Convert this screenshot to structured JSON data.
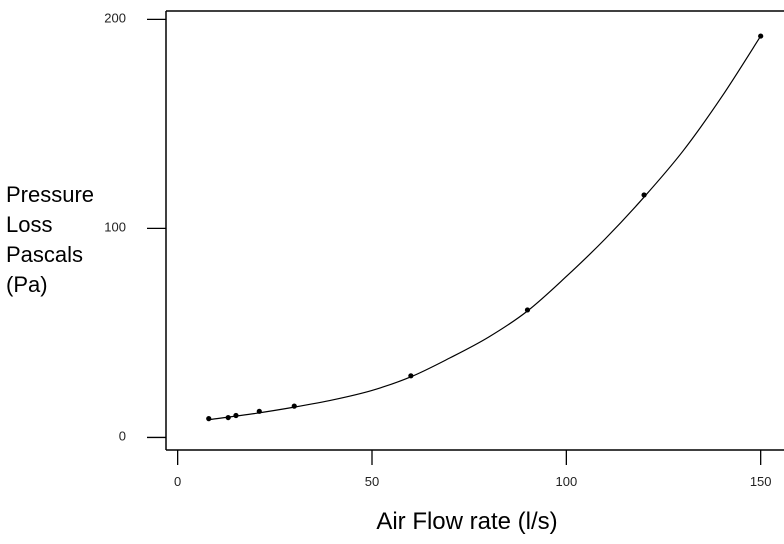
{
  "chart_data": {
    "type": "scatter",
    "title": "",
    "xlabel": "Air Flow rate (l/s)",
    "ylabel_lines": [
      "Pressure",
      "Loss",
      "Pascals",
      "(Pa)"
    ],
    "xlim": [
      -3,
      156
    ],
    "ylim": [
      -6,
      204
    ],
    "x_ticks": [
      0,
      50,
      100,
      150
    ],
    "y_ticks": [
      0,
      100,
      200
    ],
    "grid": false,
    "legend": "none",
    "series": [
      {
        "points": [
          {
            "x": 8,
            "y": 9
          },
          {
            "x": 13,
            "y": 9.5
          },
          {
            "x": 15,
            "y": 10.5
          },
          {
            "x": 21,
            "y": 12.5
          },
          {
            "x": 30,
            "y": 15
          },
          {
            "x": 60,
            "y": 29.5
          },
          {
            "x": 90,
            "y": 61
          },
          {
            "x": 120,
            "y": 116
          },
          {
            "x": 150,
            "y": 192
          }
        ],
        "trend_curve": [
          {
            "x": 8,
            "y": 8.5
          },
          {
            "x": 20,
            "y": 11.5
          },
          {
            "x": 30,
            "y": 14.5
          },
          {
            "x": 40,
            "y": 18
          },
          {
            "x": 50,
            "y": 22.5
          },
          {
            "x": 60,
            "y": 29
          },
          {
            "x": 70,
            "y": 38
          },
          {
            "x": 80,
            "y": 48
          },
          {
            "x": 90,
            "y": 60.5
          },
          {
            "x": 100,
            "y": 77
          },
          {
            "x": 110,
            "y": 95
          },
          {
            "x": 120,
            "y": 115
          },
          {
            "x": 130,
            "y": 137
          },
          {
            "x": 140,
            "y": 163
          },
          {
            "x": 150,
            "y": 192
          }
        ]
      }
    ],
    "colors": {
      "axis": "#000000",
      "marker": "#000000",
      "curve": "#000000"
    }
  }
}
